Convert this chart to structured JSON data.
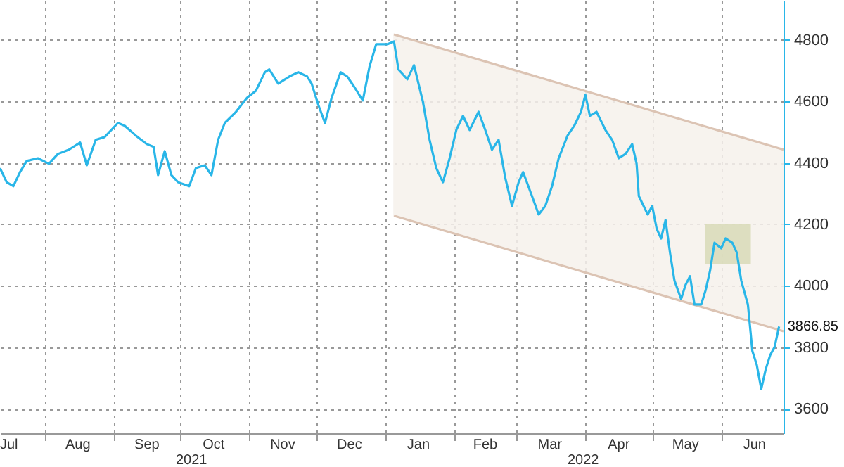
{
  "chart_data": {
    "type": "line",
    "xlim": [
      "2021-07-12",
      "2022-06-29"
    ],
    "ylim": [
      3520,
      4930
    ],
    "yticks": [
      3600,
      3800,
      4000,
      4200,
      4400,
      4600,
      4800
    ],
    "xticks": [
      {
        "value": "2021-08-01",
        "label": null
      },
      {
        "value": "2021-09-01",
        "label": null
      },
      {
        "value": "2021-10-01",
        "label": null
      },
      {
        "value": "2021-11-01",
        "label": null
      },
      {
        "value": "2021-12-01",
        "label": null
      },
      {
        "value": "2022-01-01",
        "label": null
      },
      {
        "value": "2022-02-01",
        "label": null
      },
      {
        "value": "2022-03-01",
        "label": null
      },
      {
        "value": "2022-04-01",
        "label": null
      },
      {
        "value": "2022-05-01",
        "label": null
      },
      {
        "value": "2022-06-01",
        "label": null
      },
      {
        "value": "2021-07-16",
        "label": "Jul"
      },
      {
        "value": "2021-08-16",
        "label": "Aug"
      },
      {
        "value": "2021-09-16",
        "label": "Sep"
      },
      {
        "value": "2021-10-16",
        "label": "Oct"
      },
      {
        "value": "2021-11-16",
        "label": "Nov"
      },
      {
        "value": "2021-12-16",
        "label": "Dec"
      },
      {
        "value": "2022-01-16",
        "label": "Jan"
      },
      {
        "value": "2022-02-15",
        "label": "Feb"
      },
      {
        "value": "2022-03-16",
        "label": "Mar"
      },
      {
        "value": "2022-04-16",
        "label": "Apr"
      },
      {
        "value": "2022-05-16",
        "label": "May"
      },
      {
        "value": "2022-06-16",
        "label": "Jun"
      }
    ],
    "grid": true,
    "annotations": [
      {
        "text": "3866.85",
        "x": "2022-06-27",
        "y": 3866.85
      },
      "2021",
      "2022"
    ],
    "series": [
      {
        "type": "area",
        "color": "#f6f1ec",
        "x": [
          "2022-01-05",
          "2022-06-29"
        ],
        "values": [
          null,
          null
        ],
        "lower": [
          4228,
          3852
        ],
        "upper": [
          4818,
          4443
        ]
      },
      {
        "color": "#dcc4b4",
        "x": [
          "2022-01-05",
          "2022-06-29"
        ],
        "values": [
          4818,
          4443
        ]
      },
      {
        "color": "#dcc4b4",
        "x": [
          "2022-01-05",
          "2022-06-29"
        ],
        "values": [
          4228,
          3852
        ]
      },
      {
        "type": "area",
        "color": "#d9dbb8",
        "x": [
          "2022-05-25",
          "2022-06-14"
        ],
        "values": [
          null,
          null
        ],
        "lower": [
          4072,
          4072
        ],
        "upper": [
          4200,
          4200
        ]
      },
      {
        "color": "#29b6e8",
        "x": [
          "2021-07-12",
          "2021-07-15",
          "2021-07-18",
          "2021-07-21",
          "2021-07-24",
          "2021-07-29",
          "2021-08-03",
          "2021-08-07",
          "2021-08-12",
          "2021-08-17",
          "2021-08-20",
          "2021-08-24",
          "2021-08-28",
          "2021-09-03",
          "2021-09-06",
          "2021-09-11",
          "2021-09-16",
          "2021-09-19",
          "2021-09-21",
          "2021-09-24",
          "2021-09-27",
          "2021-09-30",
          "2021-10-05",
          "2021-10-08",
          "2021-10-12",
          "2021-10-15",
          "2021-10-18",
          "2021-10-21",
          "2021-10-26",
          "2021-10-31",
          "2021-11-04",
          "2021-11-08",
          "2021-11-10",
          "2021-11-14",
          "2021-11-19",
          "2021-11-23",
          "2021-11-27",
          "2021-11-29",
          "2021-12-02",
          "2021-12-05",
          "2021-12-08",
          "2021-12-12",
          "2021-12-15",
          "2021-12-18",
          "2021-12-22",
          "2021-12-25",
          "2021-12-28",
          "2022-01-02",
          "2022-01-05",
          "2022-01-07",
          "2022-01-11",
          "2022-01-14",
          "2022-01-18",
          "2022-01-21",
          "2022-01-24",
          "2022-01-27",
          "2022-01-30",
          "2022-02-02",
          "2022-02-05",
          "2022-02-08",
          "2022-02-12",
          "2022-02-15",
          "2022-02-18",
          "2022-02-21",
          "2022-02-24",
          "2022-02-27",
          "2022-03-02",
          "2022-03-04",
          "2022-03-08",
          "2022-03-11",
          "2022-03-14",
          "2022-03-17",
          "2022-03-20",
          "2022-03-24",
          "2022-03-27",
          "2022-03-30",
          "2022-04-01",
          "2022-04-03",
          "2022-04-06",
          "2022-04-10",
          "2022-04-13",
          "2022-04-16",
          "2022-04-19",
          "2022-04-22",
          "2022-04-24",
          "2022-04-25",
          "2022-04-29",
          "2022-05-01",
          "2022-05-03",
          "2022-05-05",
          "2022-05-07",
          "2022-05-09",
          "2022-05-11",
          "2022-05-14",
          "2022-05-16",
          "2022-05-18",
          "2022-05-20",
          "2022-05-23",
          "2022-05-25",
          "2022-05-27",
          "2022-05-29",
          "2022-06-01",
          "2022-06-03",
          "2022-06-06",
          "2022-06-08",
          "2022-06-10",
          "2022-06-13",
          "2022-06-15",
          "2022-06-17",
          "2022-06-19",
          "2022-06-21",
          "2022-06-23",
          "2022-06-25",
          "2022-06-27"
        ],
        "values": [
          4383,
          4337,
          4324,
          4370,
          4406,
          4415,
          4397,
          4429,
          4443,
          4466,
          4392,
          4475,
          4484,
          4530,
          4521,
          4489,
          4461,
          4452,
          4360,
          4438,
          4360,
          4337,
          4324,
          4383,
          4392,
          4360,
          4475,
          4530,
          4566,
          4612,
          4635,
          4695,
          4704,
          4658,
          4681,
          4695,
          4681,
          4658,
          4589,
          4530,
          4612,
          4695,
          4681,
          4649,
          4603,
          4713,
          4786,
          4786,
          4795,
          4704,
          4672,
          4718,
          4599,
          4475,
          4383,
          4337,
          4415,
          4507,
          4553,
          4507,
          4566,
          4507,
          4443,
          4475,
          4351,
          4260,
          4337,
          4370,
          4292,
          4232,
          4260,
          4324,
          4415,
          4489,
          4521,
          4566,
          4621,
          4553,
          4566,
          4507,
          4475,
          4415,
          4429,
          4461,
          4397,
          4292,
          4232,
          4260,
          4186,
          4154,
          4214,
          4108,
          4017,
          3957,
          4003,
          4031,
          3939,
          3939,
          3985,
          4049,
          4140,
          4122,
          4154,
          4140,
          4108,
          4017,
          3939,
          3788,
          3742,
          3664,
          3728,
          3774,
          3801,
          3867
        ]
      }
    ]
  }
}
